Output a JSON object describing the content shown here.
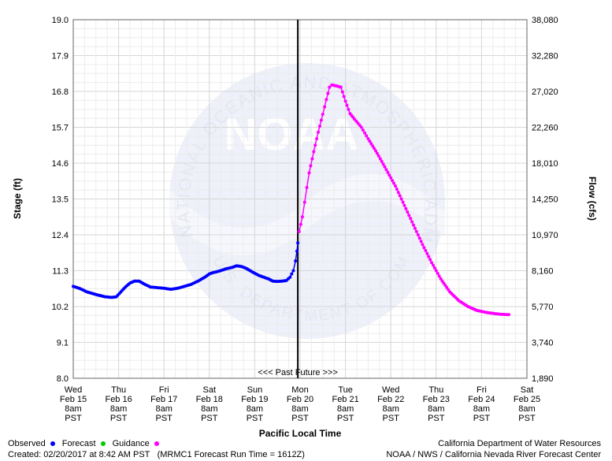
{
  "chart_data": {
    "type": "line",
    "ylabel_left": "Stage (ft)",
    "ylabel_right": "Flow (cfs)",
    "xlabel": "Pacific Local Time",
    "ylim_left": [
      8.0,
      19.0
    ],
    "yticks_left": [
      "19.0",
      "17.9",
      "16.8",
      "15.7",
      "14.6",
      "13.5",
      "12.4",
      "11.3",
      "10.2",
      "9.1",
      "8.0"
    ],
    "yticks_right": [
      "38,080",
      "32,280",
      "27,020",
      "22,260",
      "18,010",
      "14,250",
      "10,970",
      "8,160",
      "5,770",
      "3,740",
      "1,890"
    ],
    "xticks": [
      {
        "day": "Wed",
        "date": "Feb 15",
        "time": "8am",
        "tz": "PST"
      },
      {
        "day": "Thu",
        "date": "Feb 16",
        "time": "8am",
        "tz": "PST"
      },
      {
        "day": "Fri",
        "date": "Feb 17",
        "time": "8am",
        "tz": "PST"
      },
      {
        "day": "Sat",
        "date": "Feb 18",
        "time": "8am",
        "tz": "PST"
      },
      {
        "day": "Sun",
        "date": "Feb 19",
        "time": "8am",
        "tz": "PST"
      },
      {
        "day": "Mon",
        "date": "Feb 20",
        "time": "8am",
        "tz": "PST"
      },
      {
        "day": "Tue",
        "date": "Feb 21",
        "time": "8am",
        "tz": "PST"
      },
      {
        "day": "Wed",
        "date": "Feb 22",
        "time": "8am",
        "tz": "PST"
      },
      {
        "day": "Thu",
        "date": "Feb 23",
        "time": "8am",
        "tz": "PST"
      },
      {
        "day": "Fri",
        "date": "Feb 24",
        "time": "8am",
        "tz": "PST"
      },
      {
        "day": "Sat",
        "date": "Feb 25",
        "time": "8am",
        "tz": "PST"
      }
    ],
    "xlim_days": [
      0,
      10
    ],
    "now_marker_day": 4.95,
    "past_future_label": "<<< Past   Future >>>",
    "grid": true,
    "series": [
      {
        "name": "Observed",
        "color": "#0000ff",
        "points": [
          [
            0.0,
            10.82
          ],
          [
            0.15,
            10.75
          ],
          [
            0.3,
            10.65
          ],
          [
            0.5,
            10.57
          ],
          [
            0.7,
            10.5
          ],
          [
            0.85,
            10.48
          ],
          [
            0.95,
            10.5
          ],
          [
            1.05,
            10.65
          ],
          [
            1.15,
            10.8
          ],
          [
            1.25,
            10.92
          ],
          [
            1.35,
            10.98
          ],
          [
            1.45,
            10.98
          ],
          [
            1.55,
            10.9
          ],
          [
            1.7,
            10.8
          ],
          [
            1.85,
            10.78
          ],
          [
            2.0,
            10.76
          ],
          [
            2.15,
            10.73
          ],
          [
            2.3,
            10.76
          ],
          [
            2.45,
            10.82
          ],
          [
            2.6,
            10.88
          ],
          [
            2.75,
            10.98
          ],
          [
            2.9,
            11.1
          ],
          [
            3.0,
            11.2
          ],
          [
            3.1,
            11.25
          ],
          [
            3.2,
            11.28
          ],
          [
            3.35,
            11.35
          ],
          [
            3.5,
            11.4
          ],
          [
            3.6,
            11.45
          ],
          [
            3.7,
            11.43
          ],
          [
            3.8,
            11.38
          ],
          [
            3.9,
            11.3
          ],
          [
            4.0,
            11.22
          ],
          [
            4.1,
            11.15
          ],
          [
            4.2,
            11.1
          ],
          [
            4.3,
            11.05
          ],
          [
            4.4,
            10.98
          ],
          [
            4.5,
            10.97
          ],
          [
            4.6,
            10.98
          ],
          [
            4.7,
            11.0
          ],
          [
            4.78,
            11.1
          ],
          [
            4.85,
            11.3
          ],
          [
            4.9,
            11.6
          ],
          [
            4.93,
            11.9
          ],
          [
            4.95,
            12.15
          ]
        ]
      },
      {
        "name": "Forecast",
        "color": "#ff00ff",
        "points": [
          [
            4.98,
            12.5
          ],
          [
            5.05,
            12.95
          ],
          [
            5.1,
            13.4
          ],
          [
            5.15,
            13.85
          ],
          [
            5.2,
            14.3
          ],
          [
            5.3,
            14.95
          ],
          [
            5.4,
            15.55
          ],
          [
            5.5,
            16.1
          ],
          [
            5.58,
            16.55
          ],
          [
            5.65,
            16.93
          ],
          [
            5.7,
            17.0
          ],
          [
            5.8,
            16.97
          ],
          [
            5.9,
            16.93
          ],
          [
            6.0,
            16.5
          ],
          [
            6.1,
            16.12
          ],
          [
            6.2,
            15.95
          ],
          [
            6.35,
            15.7
          ],
          [
            6.5,
            15.35
          ],
          [
            6.7,
            14.9
          ],
          [
            6.9,
            14.4
          ],
          [
            7.1,
            13.9
          ],
          [
            7.3,
            13.3
          ],
          [
            7.5,
            12.7
          ],
          [
            7.7,
            12.1
          ],
          [
            7.9,
            11.55
          ],
          [
            8.1,
            11.05
          ],
          [
            8.3,
            10.65
          ],
          [
            8.5,
            10.38
          ],
          [
            8.7,
            10.2
          ],
          [
            8.9,
            10.08
          ],
          [
            9.1,
            10.02
          ],
          [
            9.3,
            9.98
          ],
          [
            9.45,
            9.96
          ],
          [
            9.6,
            9.95
          ]
        ]
      }
    ],
    "legend": {
      "observed_label": "Observed",
      "forecast_label": "Forecast",
      "guidance_label": "Guidance",
      "observed_color": "#0000ff",
      "forecast_color": "#ff00ff",
      "guidance_color": "#00cc00"
    },
    "watermark_text": "NATIONAL OCEANIC AND ATMOSPHERIC ADMINISTRATION",
    "watermark_bottom_text": "U.S. DEPARTMENT OF COMMERCE",
    "watermark_logo_text": "NOAA"
  },
  "footer": {
    "created": "Created: 02/20/2017 at 8:42 AM PST",
    "run": "(MRMC1 Forecast Run Time = 1612Z)",
    "credit_line1": "California Department of Water Resources",
    "credit_line2": "NOAA / NWS / California Nevada River Forecast Center"
  }
}
